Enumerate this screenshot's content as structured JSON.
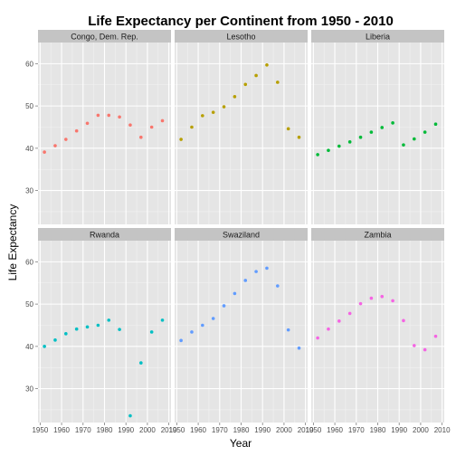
{
  "chart_data": {
    "type": "scatter",
    "title": "Life Expectancy per Continent from 1950 - 2010",
    "xlabel": "Year",
    "ylabel": "Life Expectancy",
    "xlim": [
      1949,
      2011
    ],
    "ylim": [
      22,
      65
    ],
    "x_ticks": [
      1950,
      1960,
      1970,
      1980,
      1990,
      2000,
      2010
    ],
    "x_tick_labels": [
      "1950",
      "1960",
      "1970",
      "1980",
      "1990",
      "2000",
      "2010"
    ],
    "y_ticks": [
      30,
      40,
      50,
      60
    ],
    "y_tick_labels": [
      "30",
      "40",
      "50",
      "60"
    ],
    "grid": true,
    "legend": "none",
    "facet_layout": {
      "rows": 2,
      "cols": 3
    },
    "facets": [
      {
        "name": "Congo, Dem. Rep.",
        "color": "#F8766D",
        "x": [
          1952,
          1957,
          1962,
          1967,
          1972,
          1977,
          1982,
          1987,
          1992,
          1997,
          2002,
          2007
        ],
        "y": [
          39.1,
          40.6,
          42.1,
          44.1,
          45.9,
          47.8,
          47.8,
          47.4,
          45.5,
          42.6,
          45.0,
          46.5
        ]
      },
      {
        "name": "Lesotho",
        "color": "#B79F00",
        "x": [
          1952,
          1957,
          1962,
          1967,
          1972,
          1977,
          1982,
          1987,
          1992,
          1997,
          2002,
          2007
        ],
        "y": [
          42.1,
          45.0,
          47.7,
          48.5,
          49.8,
          52.2,
          55.1,
          57.2,
          59.7,
          55.6,
          44.6,
          42.6
        ]
      },
      {
        "name": "Liberia",
        "color": "#00BA38",
        "x": [
          1952,
          1957,
          1962,
          1967,
          1972,
          1977,
          1982,
          1987,
          1992,
          1997,
          2002,
          2007
        ],
        "y": [
          38.5,
          39.5,
          40.5,
          41.5,
          42.6,
          43.8,
          44.9,
          46.0,
          40.8,
          42.2,
          43.8,
          45.7
        ]
      },
      {
        "name": "Rwanda",
        "color": "#00BFC4",
        "x": [
          1952,
          1957,
          1962,
          1967,
          1972,
          1977,
          1982,
          1987,
          1992,
          1997,
          2002,
          2007
        ],
        "y": [
          40.0,
          41.5,
          43.0,
          44.1,
          44.6,
          45.0,
          46.2,
          44.0,
          23.6,
          36.1,
          43.4,
          46.2
        ]
      },
      {
        "name": "Swaziland",
        "color": "#619CFF",
        "x": [
          1952,
          1957,
          1962,
          1967,
          1972,
          1977,
          1982,
          1987,
          1992,
          1997,
          2002,
          2007
        ],
        "y": [
          41.4,
          43.4,
          45.0,
          46.6,
          49.6,
          52.5,
          55.6,
          57.7,
          58.5,
          54.3,
          43.9,
          39.6
        ]
      },
      {
        "name": "Zambia",
        "color": "#F564E3",
        "x": [
          1952,
          1957,
          1962,
          1967,
          1972,
          1977,
          1982,
          1987,
          1992,
          1997,
          2002,
          2007
        ],
        "y": [
          42.0,
          44.1,
          46.0,
          47.8,
          50.1,
          51.4,
          51.8,
          50.8,
          46.1,
          40.2,
          39.2,
          42.4
        ]
      }
    ]
  }
}
